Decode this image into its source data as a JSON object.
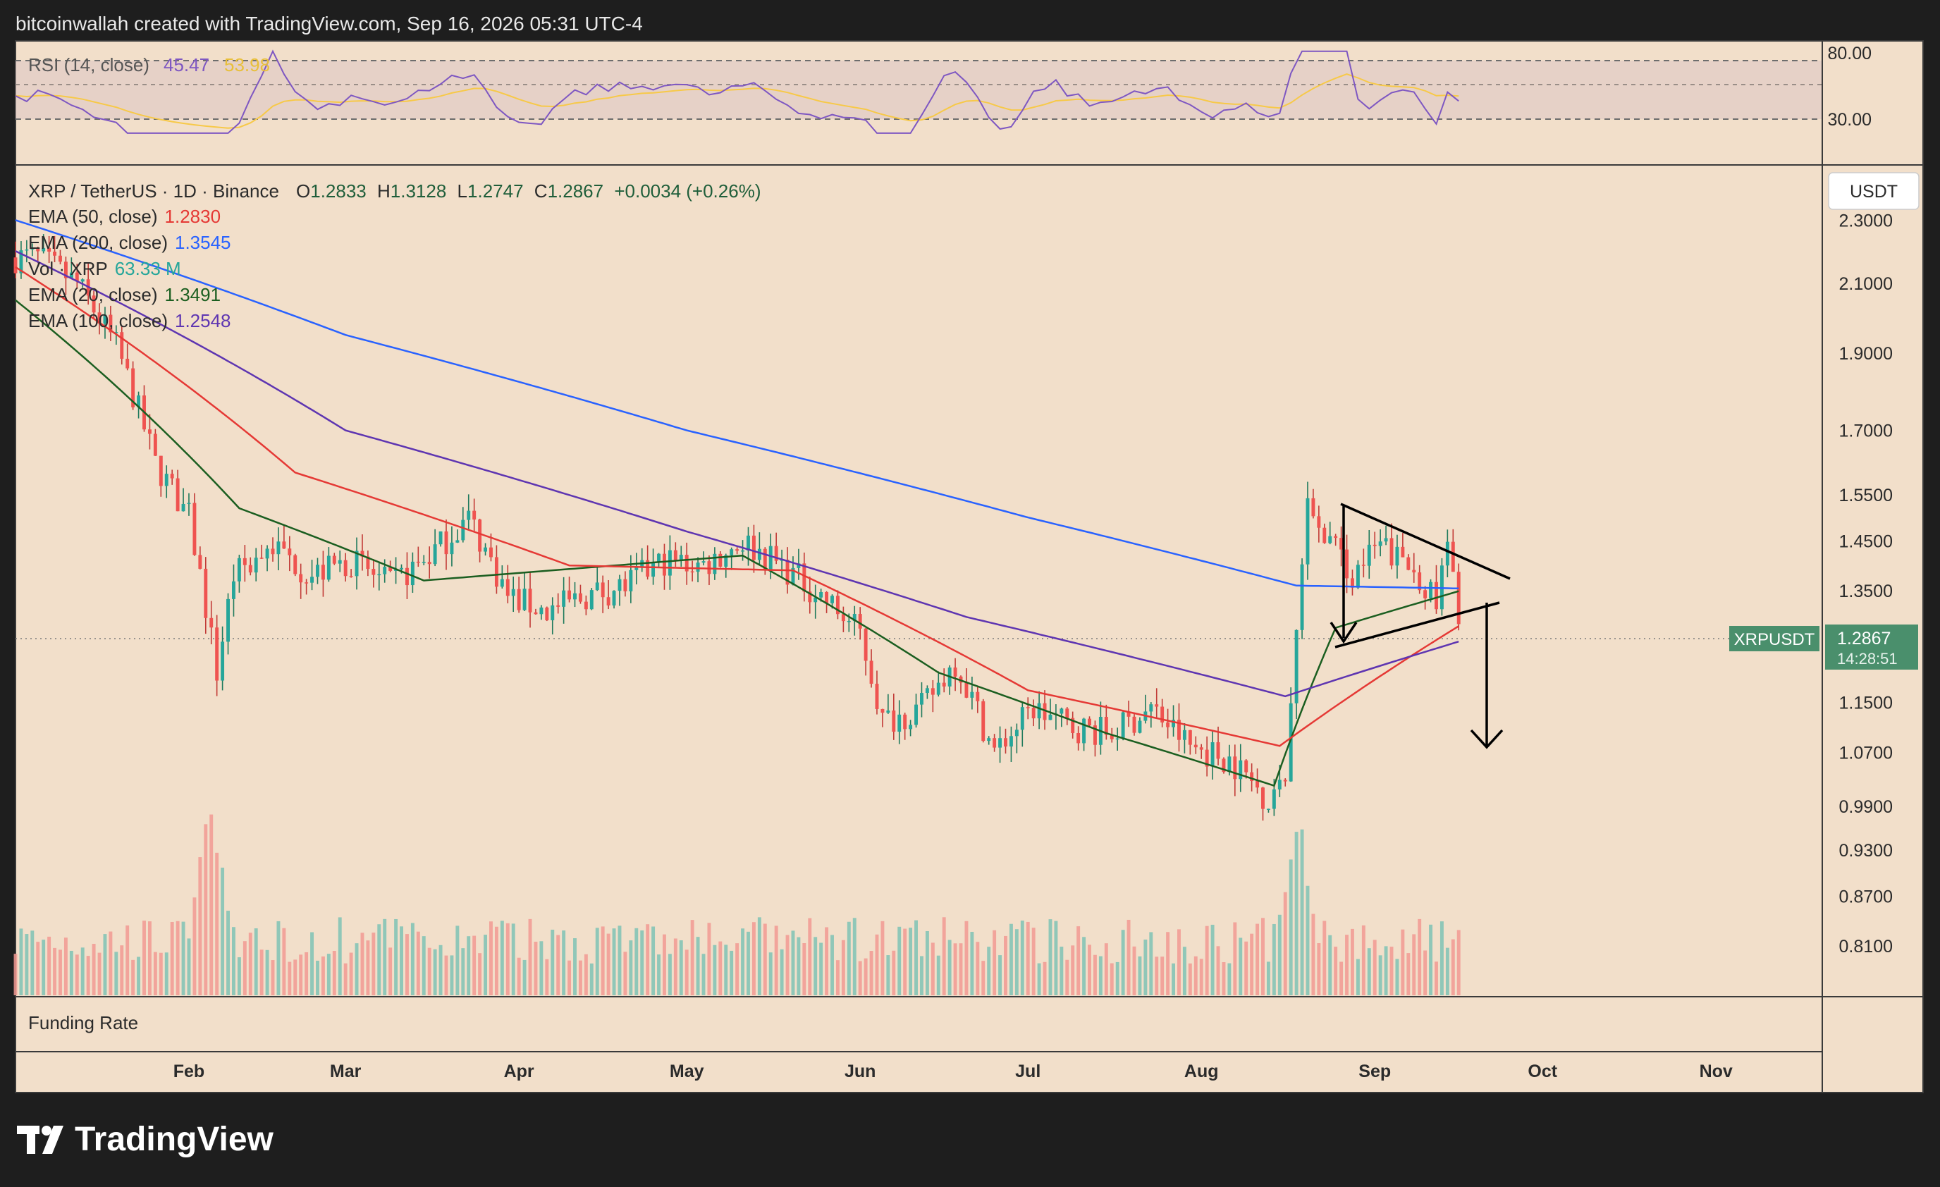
{
  "header": {
    "caption": "bitcoinwallah created with TradingView.com, Sep 16, 2026 05:31 UTC-4"
  },
  "brand": {
    "name": "TradingView"
  },
  "rsi_pane": {
    "title": "RSI (14, close)",
    "value": "45.47",
    "signal_value": "53.98",
    "levels": [
      "80.00",
      "30.00"
    ]
  },
  "main_legend": {
    "symbol": "XRP / TetherUS · 1D · Binance",
    "ohlc": {
      "o_label": "O",
      "o": "1.2833",
      "h_label": "H",
      "h": "1.3128",
      "l_label": "L",
      "l": "1.2747",
      "c_label": "C",
      "c": "1.2867",
      "change": "+0.0034 (+0.26%)"
    },
    "indicators": [
      {
        "label": "EMA (50, close)",
        "value": "1.2830",
        "color": "#e53935"
      },
      {
        "label": "EMA (200, close)",
        "value": "1.3545",
        "color": "#2962ff"
      },
      {
        "label": "Vol · XRP",
        "value": "63.33 M",
        "color": "#26a69a"
      },
      {
        "label": "EMA (20, close)",
        "value": "1.3491",
        "color": "#1b5e20"
      },
      {
        "label": "EMA (100, close)",
        "value": "1.2548",
        "color": "#5e35b1"
      }
    ]
  },
  "currency_button": "USDT",
  "price_tag": {
    "symbol": "XRPUSDT",
    "price": "1.2867",
    "countdown": "14:28:51"
  },
  "funding_pane": {
    "title": "Funding Rate"
  },
  "colors": {
    "background": "#f2dfca",
    "up": "#26a69a",
    "down": "#ef5350",
    "up_volume": "#7fc3b5",
    "down_volume": "#f29a93",
    "rsi": "#7e57c2",
    "rsi_ma": "#f7c948"
  },
  "chart_data": {
    "type": "candlestick",
    "symbol": "XRP / TetherUS",
    "interval": "1D",
    "x_tick_labels": [
      "Feb",
      "Mar",
      "Apr",
      "May",
      "Jun",
      "Jul",
      "Aug",
      "Sep",
      "Oct",
      "Nov"
    ],
    "y_tick_labels": [
      "2.3000",
      "2.1000",
      "1.9000",
      "1.7000",
      "1.5500",
      "1.4500",
      "1.3500",
      "1.1500",
      "1.0700",
      "0.9900",
      "0.9300",
      "0.8700",
      "0.8100"
    ],
    "y_scale": "log",
    "ylim": [
      0.76,
      2.45
    ],
    "last_close": 1.2867,
    "price_keypoints": [
      {
        "date": "2026-01-05",
        "close": 2.18
      },
      {
        "date": "2026-01-12",
        "close": 2.1
      },
      {
        "date": "2026-01-19",
        "close": 1.92
      },
      {
        "date": "2026-01-26",
        "close": 1.62
      },
      {
        "date": "2026-02-01",
        "close": 1.5
      },
      {
        "date": "2026-02-06",
        "close": 1.2
      },
      {
        "date": "2026-02-09",
        "close": 1.38
      },
      {
        "date": "2026-02-16",
        "close": 1.44
      },
      {
        "date": "2026-02-23",
        "close": 1.38
      },
      {
        "date": "2026-03-02",
        "close": 1.41
      },
      {
        "date": "2026-03-09",
        "close": 1.36
      },
      {
        "date": "2026-03-16",
        "close": 1.42
      },
      {
        "date": "2026-03-23",
        "close": 1.5
      },
      {
        "date": "2026-03-30",
        "close": 1.34
      },
      {
        "date": "2026-04-06",
        "close": 1.31
      },
      {
        "date": "2026-04-13",
        "close": 1.34
      },
      {
        "date": "2026-04-20",
        "close": 1.36
      },
      {
        "date": "2026-04-27",
        "close": 1.41
      },
      {
        "date": "2026-05-04",
        "close": 1.4
      },
      {
        "date": "2026-05-11",
        "close": 1.45
      },
      {
        "date": "2026-05-18",
        "close": 1.4
      },
      {
        "date": "2026-05-25",
        "close": 1.34
      },
      {
        "date": "2026-06-01",
        "close": 1.27
      },
      {
        "date": "2026-06-05",
        "close": 1.12
      },
      {
        "date": "2026-06-12",
        "close": 1.14
      },
      {
        "date": "2026-06-18",
        "close": 1.22
      },
      {
        "date": "2026-06-25",
        "close": 1.07
      },
      {
        "date": "2026-07-02",
        "close": 1.14
      },
      {
        "date": "2026-07-09",
        "close": 1.11
      },
      {
        "date": "2026-07-16",
        "close": 1.1
      },
      {
        "date": "2026-07-23",
        "close": 1.14
      },
      {
        "date": "2026-07-30",
        "close": 1.08
      },
      {
        "date": "2026-08-06",
        "close": 1.06
      },
      {
        "date": "2026-08-13",
        "close": 1.0
      },
      {
        "date": "2026-08-16",
        "close": 1.02
      },
      {
        "date": "2026-08-18",
        "close": 1.27
      },
      {
        "date": "2026-08-20",
        "close": 1.52
      },
      {
        "date": "2026-08-24",
        "close": 1.45
      },
      {
        "date": "2026-08-28",
        "close": 1.38
      },
      {
        "date": "2026-09-02",
        "close": 1.44
      },
      {
        "date": "2026-09-09",
        "close": 1.38
      },
      {
        "date": "2026-09-12",
        "close": 1.32
      },
      {
        "date": "2026-09-14",
        "close": 1.44
      },
      {
        "date": "2026-09-16",
        "close": 1.2867
      }
    ],
    "ema_series": [
      {
        "name": "EMA (20, close)",
        "color": "#1b5e20",
        "points": [
          {
            "date": "2026-01-01",
            "value": 2.05
          },
          {
            "date": "2026-02-10",
            "value": 1.52
          },
          {
            "date": "2026-03-15",
            "value": 1.37
          },
          {
            "date": "2026-05-11",
            "value": 1.42
          },
          {
            "date": "2026-06-15",
            "value": 1.2
          },
          {
            "date": "2026-07-15",
            "value": 1.1
          },
          {
            "date": "2026-08-14",
            "value": 1.02
          },
          {
            "date": "2026-08-25",
            "value": 1.28
          },
          {
            "date": "2026-09-16",
            "value": 1.3491
          }
        ]
      },
      {
        "name": "EMA (50, close)",
        "color": "#e53935",
        "points": [
          {
            "date": "2026-01-01",
            "value": 2.15
          },
          {
            "date": "2026-02-20",
            "value": 1.6
          },
          {
            "date": "2026-04-10",
            "value": 1.4
          },
          {
            "date": "2026-05-20",
            "value": 1.39
          },
          {
            "date": "2026-07-01",
            "value": 1.17
          },
          {
            "date": "2026-08-15",
            "value": 1.08
          },
          {
            "date": "2026-09-16",
            "value": 1.283
          }
        ]
      },
      {
        "name": "EMA (100, close)",
        "color": "#5e35b1",
        "points": [
          {
            "date": "2026-01-01",
            "value": 2.2
          },
          {
            "date": "2026-03-01",
            "value": 1.7
          },
          {
            "date": "2026-05-01",
            "value": 1.47
          },
          {
            "date": "2026-06-20",
            "value": 1.3
          },
          {
            "date": "2026-08-16",
            "value": 1.16
          },
          {
            "date": "2026-09-16",
            "value": 1.2548
          }
        ]
      },
      {
        "name": "EMA (200, close)",
        "color": "#2962ff",
        "points": [
          {
            "date": "2026-01-01",
            "value": 2.3
          },
          {
            "date": "2026-03-01",
            "value": 1.95
          },
          {
            "date": "2026-05-01",
            "value": 1.7
          },
          {
            "date": "2026-07-01",
            "value": 1.5
          },
          {
            "date": "2026-08-18",
            "value": 1.36
          },
          {
            "date": "2026-09-16",
            "value": 1.3545
          }
        ]
      }
    ],
    "volume_spikes": [
      {
        "date": "2026-02-05",
        "relative": 1.0
      },
      {
        "date": "2026-08-18",
        "relative": 0.95
      }
    ],
    "rsi": {
      "name": "RSI (14, close)",
      "levels": [
        80,
        30
      ],
      "last": 45.47,
      "ma_last": 53.98
    },
    "annotations": [
      {
        "type": "symmetrical-triangle",
        "start": "2026-08-20",
        "end": "2026-09-16",
        "upper_from": 1.55,
        "upper_to": 1.42,
        "lower_from": 1.3,
        "lower_to": 1.355
      },
      {
        "type": "arrow-down",
        "date": "2026-09-16",
        "from": 1.3,
        "to": 1.1
      }
    ],
    "grid": false,
    "legend_position": "top-left"
  }
}
